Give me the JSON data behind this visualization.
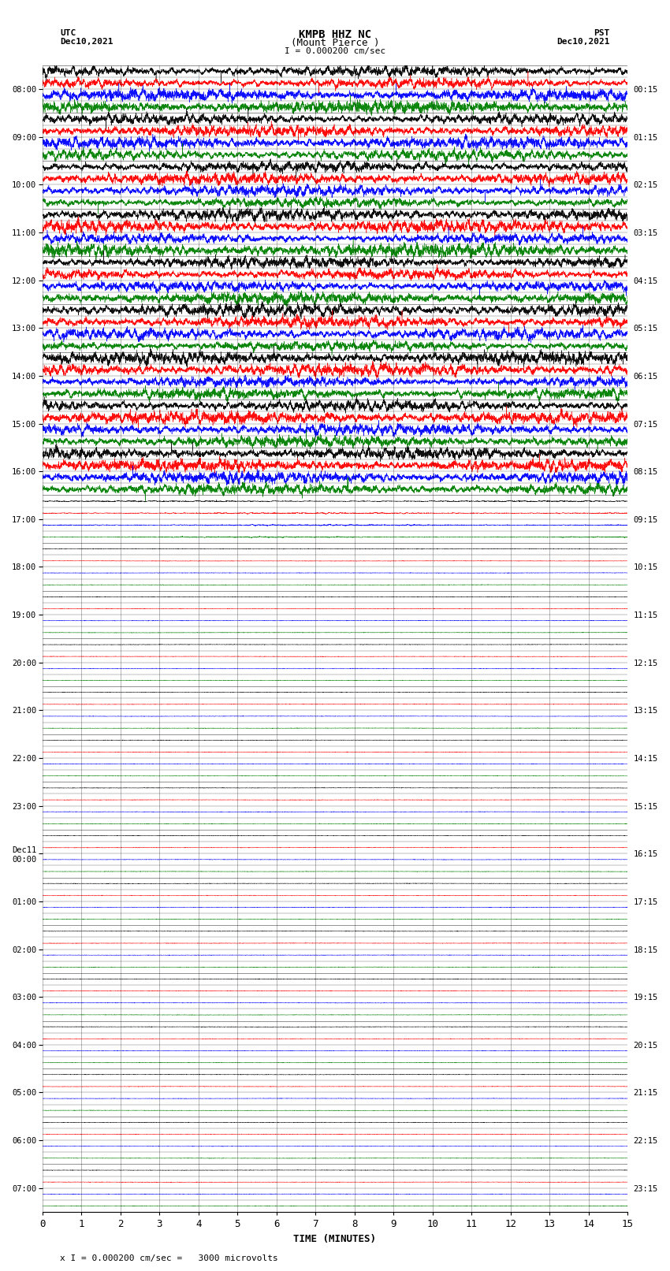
{
  "title_line1": "KMPB HHZ NC",
  "title_line2": "(Mount Pierce )",
  "title_line3": "I = 0.000200 cm/sec",
  "left_header_line1": "UTC",
  "left_header_line2": "Dec10,2021",
  "right_header_line1": "PST",
  "right_header_line2": "Dec10,2021",
  "xlabel": "TIME (MINUTES)",
  "footer": "x I = 0.000200 cm/sec =   3000 microvolts",
  "utc_times": [
    "08:00",
    "09:00",
    "10:00",
    "11:00",
    "12:00",
    "13:00",
    "14:00",
    "15:00",
    "16:00",
    "17:00",
    "18:00",
    "19:00",
    "20:00",
    "21:00",
    "22:00",
    "23:00",
    "Dec11\n00:00",
    "01:00",
    "02:00",
    "03:00",
    "04:00",
    "05:00",
    "06:00",
    "07:00"
  ],
  "pst_times": [
    "00:15",
    "01:15",
    "02:15",
    "03:15",
    "04:15",
    "05:15",
    "06:15",
    "07:15",
    "08:15",
    "09:15",
    "10:15",
    "11:15",
    "12:15",
    "13:15",
    "14:15",
    "15:15",
    "16:15",
    "17:15",
    "18:15",
    "19:15",
    "20:15",
    "21:15",
    "22:15",
    "23:15"
  ],
  "n_rows": 24,
  "n_active_rows": 10,
  "n_subrows": 4,
  "minutes_per_row": 15,
  "xlim": [
    0,
    15
  ],
  "xticks": [
    0,
    1,
    2,
    3,
    4,
    5,
    6,
    7,
    8,
    9,
    10,
    11,
    12,
    13,
    14,
    15
  ],
  "colors_cycle": [
    "black",
    "red",
    "blue",
    "green"
  ],
  "background_color": "white",
  "grid_color": "#888888",
  "fig_width": 8.5,
  "fig_height": 16.13,
  "dpi": 100
}
